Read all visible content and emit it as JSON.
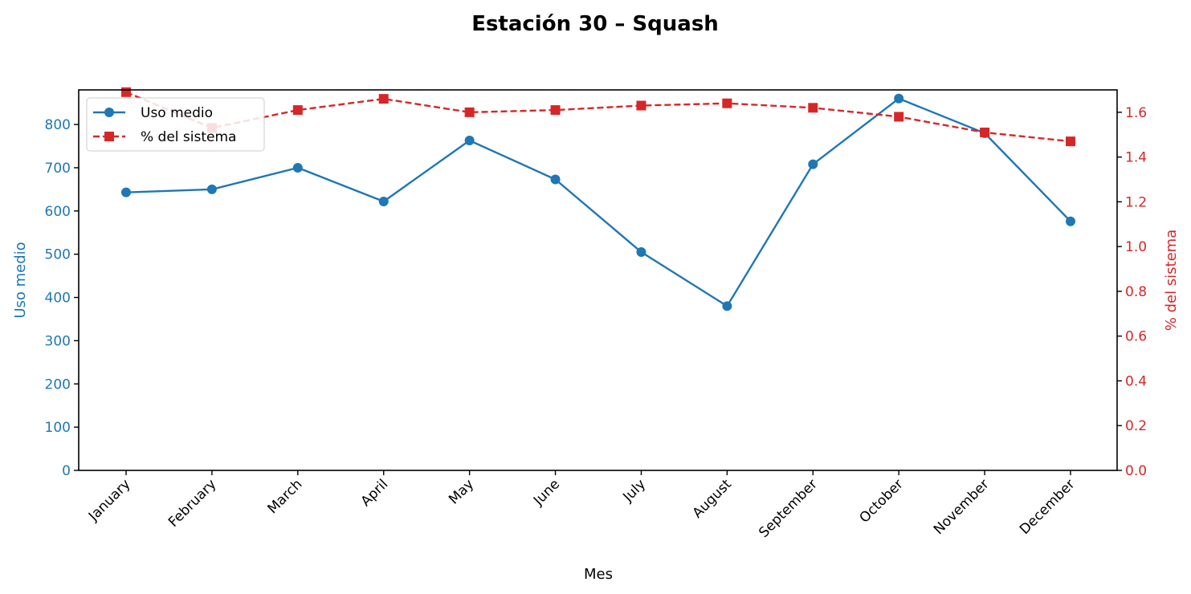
{
  "colors": {
    "primary": "#1f77b4",
    "secondary": "#d62728",
    "axis": "#000000"
  },
  "chart_data": {
    "type": "line",
    "title": "Estación 30 – Squash",
    "xlabel": "Mes",
    "ylabel_left": "Uso medio",
    "ylabel_right": "% del sistema",
    "categories": [
      "January",
      "February",
      "March",
      "April",
      "May",
      "June",
      "July",
      "August",
      "September",
      "October",
      "November",
      "December"
    ],
    "y_left_lim": [
      0,
      880
    ],
    "y_left_ticks": [
      0,
      100,
      200,
      300,
      400,
      500,
      600,
      700,
      800
    ],
    "y_right_lim": [
      0,
      1.7
    ],
    "y_right_ticks": [
      "0.0",
      "0.2",
      "0.4",
      "0.6",
      "0.8",
      "1.0",
      "1.2",
      "1.4",
      "1.6"
    ],
    "legend_position": "top-left",
    "grid": false,
    "series": [
      {
        "name": "Uso medio",
        "axis": "left",
        "marker": "circle",
        "line": "solid",
        "color": "#1f77b4",
        "values": [
          643,
          650,
          700,
          622,
          763,
          673,
          505,
          380,
          708,
          860,
          780,
          576
        ]
      },
      {
        "name": "% del sistema",
        "axis": "right",
        "marker": "square",
        "line": "dashed",
        "color": "#d62728",
        "values": [
          1.69,
          1.53,
          1.61,
          1.66,
          1.6,
          1.61,
          1.63,
          1.64,
          1.62,
          1.58,
          1.51,
          1.47
        ]
      }
    ]
  }
}
